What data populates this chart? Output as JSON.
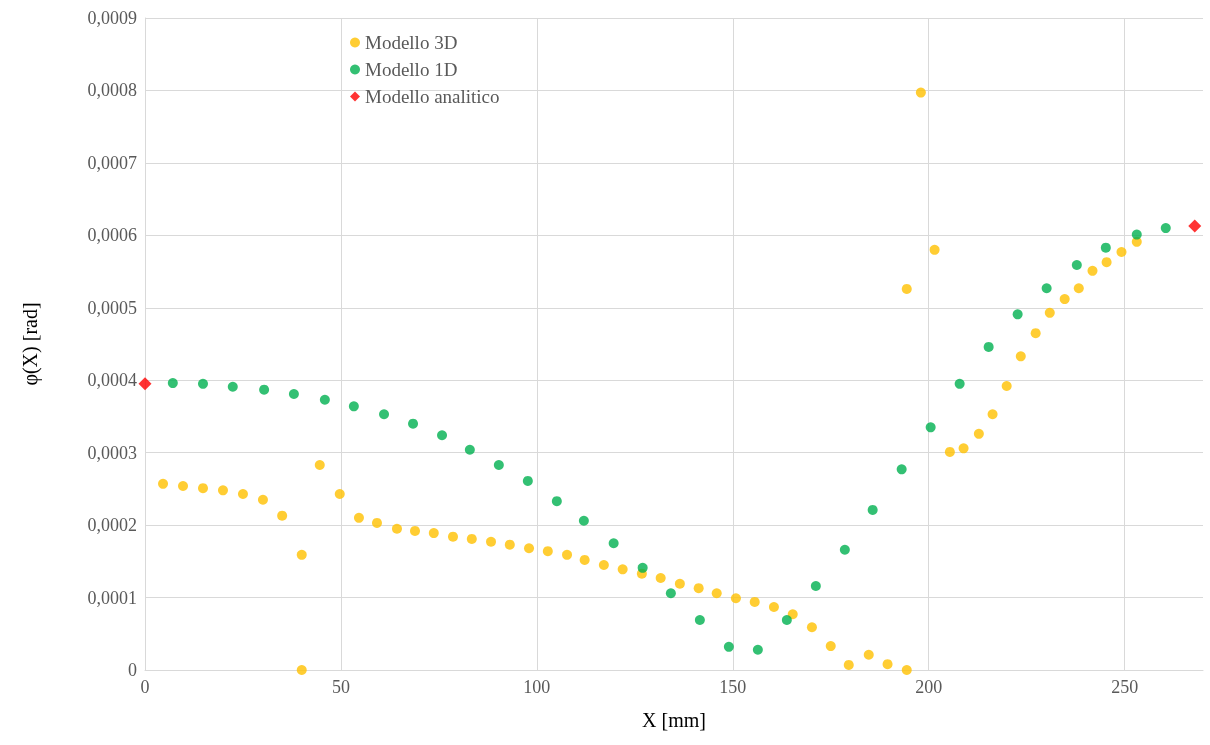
{
  "chart_data": {
    "type": "scatter",
    "xlabel": "X [mm]",
    "ylabel": "φ(X) [rad]",
    "xlim": [
      0,
      270
    ],
    "xticks": [
      0,
      50,
      100,
      150,
      200,
      250
    ],
    "ylim": [
      0,
      0.0009
    ],
    "yticks": [
      0,
      {
        "value": 0.0001,
        "label": "0,0001"
      },
      {
        "value": 0.0002,
        "label": "0,0002"
      },
      {
        "value": 0.0003,
        "label": "0,0003"
      },
      {
        "value": 0.0004,
        "label": "0,0004"
      },
      {
        "value": 0.0005,
        "label": "0,0005"
      },
      {
        "value": 0.0006,
        "label": "0,0006"
      },
      {
        "value": 0.0007,
        "label": "0,0007"
      },
      {
        "value": 0.0008,
        "label": "0,0008"
      },
      {
        "value": 0.0009,
        "label": "0,0009"
      }
    ],
    "grid": true,
    "legend": "top",
    "series": [
      {
        "name": "Modello 3D",
        "color": "#ffc000",
        "marker": "circle",
        "x": [
          4.6,
          9.7,
          14.8,
          19.9,
          25,
          30.1,
          35,
          40,
          40,
          44.6,
          49.7,
          54.6,
          59.2,
          64.3,
          68.9,
          73.7,
          78.6,
          83.4,
          88.3,
          93.1,
          98,
          102.8,
          107.7,
          112.2,
          117.1,
          121.9,
          126.8,
          131.6,
          136.5,
          141.3,
          145.9,
          150.8,
          155.6,
          160.5,
          165.3,
          170.2,
          175,
          179.6,
          184.7,
          189.5,
          194.4,
          194.4,
          198,
          201.5,
          205.4,
          208.9,
          212.8,
          216.3,
          219.9,
          223.5,
          227.3,
          230.9,
          234.7,
          238.3,
          241.8,
          245.4,
          249.2,
          253.1
        ],
        "values": [
          0.000257,
          0.000254,
          0.000251,
          0.000248,
          0.000243,
          0.000235,
          0.000213,
          0.000159,
          0,
          0.000283,
          0.000243,
          0.00021,
          0.000203,
          0.000195,
          0.000192,
          0.000189,
          0.000184,
          0.000181,
          0.000177,
          0.000173,
          0.000168,
          0.000164,
          0.000159,
          0.000152,
          0.000145,
          0.000139,
          0.000133,
          0.000127,
          0.000119,
          0.000113,
          0.000106,
          9.9e-05,
          9.4e-05,
          8.7e-05,
          7.7e-05,
          5.9e-05,
          3.3e-05,
          7e-06,
          2.1e-05,
          8e-06,
          0,
          0.000526,
          0.000797,
          0.00058,
          0.000301,
          0.000306,
          0.000326,
          0.000353,
          0.000392,
          0.000433,
          0.000465,
          0.000493,
          0.000512,
          0.000527,
          0.000551,
          0.000563,
          0.000577,
          0.000591
        ]
      },
      {
        "name": "Modello 1D",
        "color": "#00b050",
        "marker": "circle",
        "x": [
          7.1,
          14.8,
          22.4,
          30.4,
          38,
          45.9,
          53.3,
          61,
          68.4,
          75.8,
          82.9,
          90.3,
          97.7,
          105.1,
          112,
          119.6,
          127,
          134.2,
          141.6,
          149,
          156.4,
          163.8,
          171.2,
          178.6,
          185.7,
          193.1,
          200.5,
          207.9,
          215.3,
          222.7,
          230.1,
          237.8,
          245.2,
          253.1,
          260.5
        ],
        "values": [
          0.000396,
          0.000395,
          0.000391,
          0.000387,
          0.000381,
          0.000373,
          0.000364,
          0.000353,
          0.00034,
          0.000324,
          0.000304,
          0.000283,
          0.000261,
          0.000233,
          0.000206,
          0.000175,
          0.000141,
          0.000106,
          6.9e-05,
          3.2e-05,
          2.8e-05,
          6.9e-05,
          0.000116,
          0.000166,
          0.000221,
          0.000277,
          0.000335,
          0.000395,
          0.000446,
          0.000491,
          0.000527,
          0.000559,
          0.000583,
          0.000601,
          0.00061
        ]
      },
      {
        "name": "Modello analitico",
        "color": "#ff0000",
        "marker": "diamond",
        "x": [
          0,
          267.9
        ],
        "values": [
          0.000395,
          0.000613
        ]
      }
    ]
  }
}
